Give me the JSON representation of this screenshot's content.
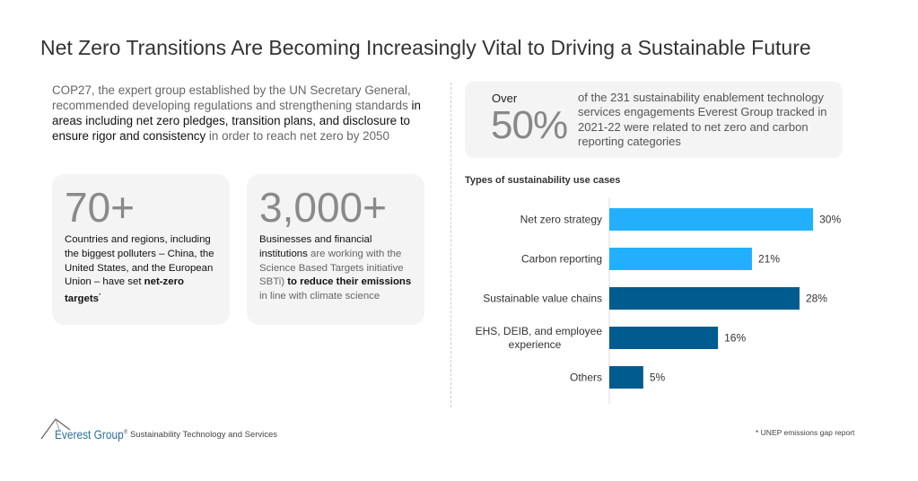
{
  "title": "Net Zero Transitions Are Becoming Increasingly Vital to Driving a Sustainable Future",
  "intro": {
    "part1": "COP27, the expert group established by the UN Secretary General, recommended developing regulations and strengthening standards ",
    "part2": "in areas including net zero pledges, transition plans, and disclosure to ensure rigor and consistency",
    "part3": " in order to reach net zero by 2050"
  },
  "cards": [
    {
      "number": "70+",
      "text1": "Countries and regions, including the biggest polluters – China, the United States, and the European Union – have set ",
      "bold": "net-zero targets",
      "sup": "*"
    },
    {
      "number": "3,000+",
      "text1": "Businesses and financial institutions",
      "text2": " are working with the Science Based Targets initiative SBTi) ",
      "bold": "to reduce their emissions",
      "text3": " in line with climate science"
    }
  ],
  "stat": {
    "over": "Over",
    "value": "50%",
    "text": "of the 231 sustainability enablement technology services engagements Everest Group tracked in 2021-22 were related to net zero and carbon reporting categories"
  },
  "colors": {
    "light_blue": "#22b0fc",
    "dark_blue": "#005b8e"
  },
  "chart_data": {
    "type": "bar",
    "orientation": "horizontal",
    "title": "Types of sustainability use cases",
    "categories": [
      "Net zero strategy",
      "Carbon reporting",
      "Sustainable value chains",
      "EHS, DEIB, and employee experience",
      "Others"
    ],
    "category_lines": [
      [
        "Net zero strategy"
      ],
      [
        "Carbon reporting"
      ],
      [
        "Sustainable value chains"
      ],
      [
        "EHS, DEIB, and employee",
        "experience"
      ],
      [
        "Others"
      ]
    ],
    "values": [
      30,
      21,
      28,
      16,
      5
    ],
    "labels": [
      "30%",
      "21%",
      "28%",
      "16%",
      "5%"
    ],
    "bar_colors": [
      "#22b0fc",
      "#22b0fc",
      "#005b8e",
      "#005b8e",
      "#005b8e"
    ],
    "unit": "%",
    "grid": false
  },
  "footer": {
    "brand": "Everest Group",
    "registered": "®",
    "subtitle": "Sustainability Technology and Services",
    "note": "* UNEP emissions gap report"
  }
}
